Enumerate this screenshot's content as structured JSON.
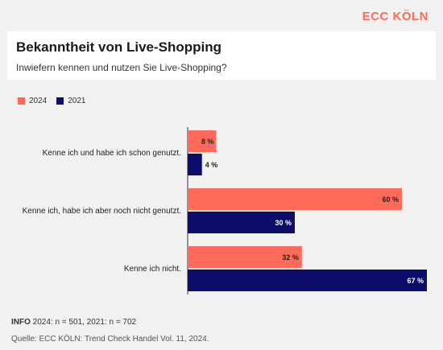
{
  "brand": "ECC KÖLN",
  "chart_data": {
    "type": "bar",
    "orientation": "horizontal",
    "title": "Bekanntheit von Live-Shopping",
    "subtitle": "Inwiefern kennen und nutzen Sie Live-Shopping?",
    "categories": [
      "Kenne ich und habe ich schon genutzt.",
      "Kenne ich, habe ich aber noch nicht genutzt.",
      "Kenne ich nicht."
    ],
    "series": [
      {
        "name": "2024",
        "color": "#ff6a5a",
        "values": [
          8,
          60,
          32
        ]
      },
      {
        "name": "2021",
        "color": "#0d0d6b",
        "values": [
          4,
          30,
          67
        ]
      }
    ],
    "value_suffix": " %",
    "xlim": [
      0,
      67
    ],
    "grid": false,
    "legend": "top-left"
  },
  "footer": {
    "info_label": "INFO",
    "info_text": " 2024: n = 501, 2021: n = 702",
    "source": "Quelle: ECC KÖLN: Trend Check Handel Vol. 11, 2024."
  }
}
